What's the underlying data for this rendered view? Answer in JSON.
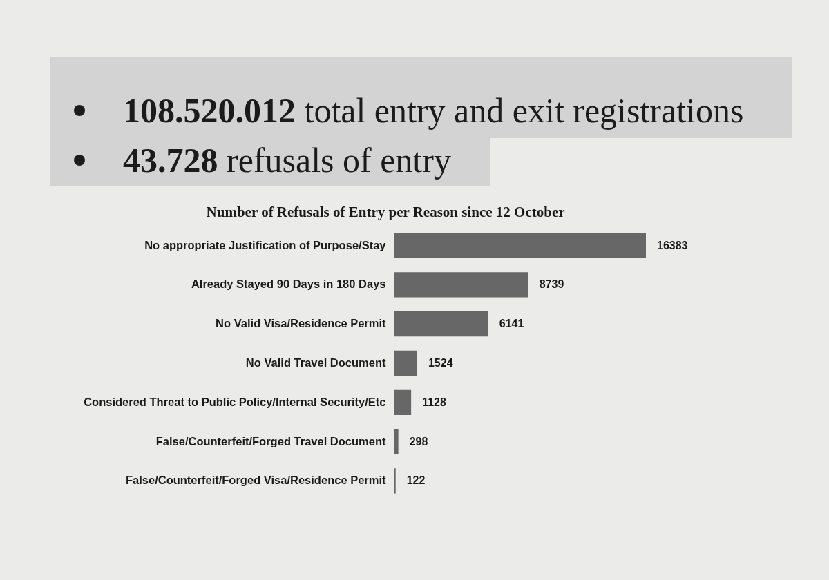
{
  "chart_data": {
    "type": "bar",
    "orientation": "horizontal",
    "title": "Number of Refusals of Entry per Reason since 12 October",
    "annotations": [
      "108.520.012 total entry and exit registrations",
      "43.728 refusals of entry"
    ],
    "categories": [
      "No appropriate Justification of Purpose/Stay",
      "Already Stayed 90 Days in 180 Days",
      "No Valid Visa/Residence Permit",
      "No Valid Travel Document",
      "Considered Threat to Public Policy/Internal Security/Etc",
      "False/Counterfeit/Forged Travel Document",
      "False/Counterfeit/Forged Visa/Residence Permit"
    ],
    "values": [
      16383,
      8739,
      6141,
      1524,
      1128,
      298,
      122
    ],
    "color": "#676767",
    "data_labels": true,
    "tick_labels": "y"
  }
}
